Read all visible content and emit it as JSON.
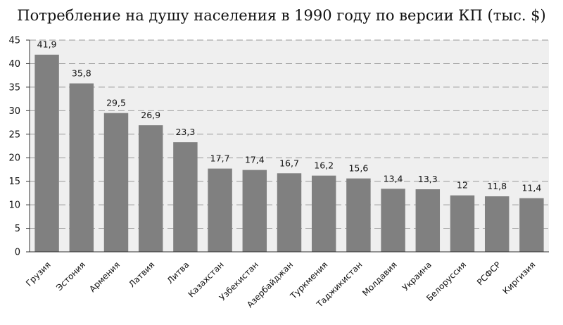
{
  "chart_data": {
    "type": "bar",
    "title": "Потребление на душу населения в 1990 году по версии КП (тыс. $)",
    "categories": [
      "Грузия",
      "Эстония",
      "Армения",
      "Латвия",
      "Литва",
      "Казахстан",
      "Узбекистан",
      "Азербайджан",
      "Туркмения",
      "Таджикистан",
      "Молдавия",
      "Украина",
      "Белоруссия",
      "РСФСР",
      "Киргизия"
    ],
    "values": [
      41.9,
      35.8,
      29.5,
      26.9,
      23.3,
      17.7,
      17.4,
      16.7,
      16.2,
      15.6,
      13.4,
      13.3,
      12,
      11.8,
      11.4
    ],
    "value_labels": [
      "41,9",
      "35,8",
      "29,5",
      "26,9",
      "23,3",
      "17,7",
      "17,4",
      "16,7",
      "16,2",
      "15,6",
      "13,4",
      "13,3",
      "12",
      "11,8",
      "11,4"
    ],
    "ylim": [
      0,
      45
    ],
    "yticks": [
      0,
      5,
      10,
      15,
      20,
      25,
      30,
      35,
      40,
      45
    ],
    "xlabel": "",
    "ylabel": "",
    "grid": true,
    "grid_style": "dashed",
    "legend": "none",
    "colors": {
      "bar": "#808080",
      "plot_background": "#efefef",
      "grid": "#9a9a9a",
      "axis": "#333333"
    }
  }
}
